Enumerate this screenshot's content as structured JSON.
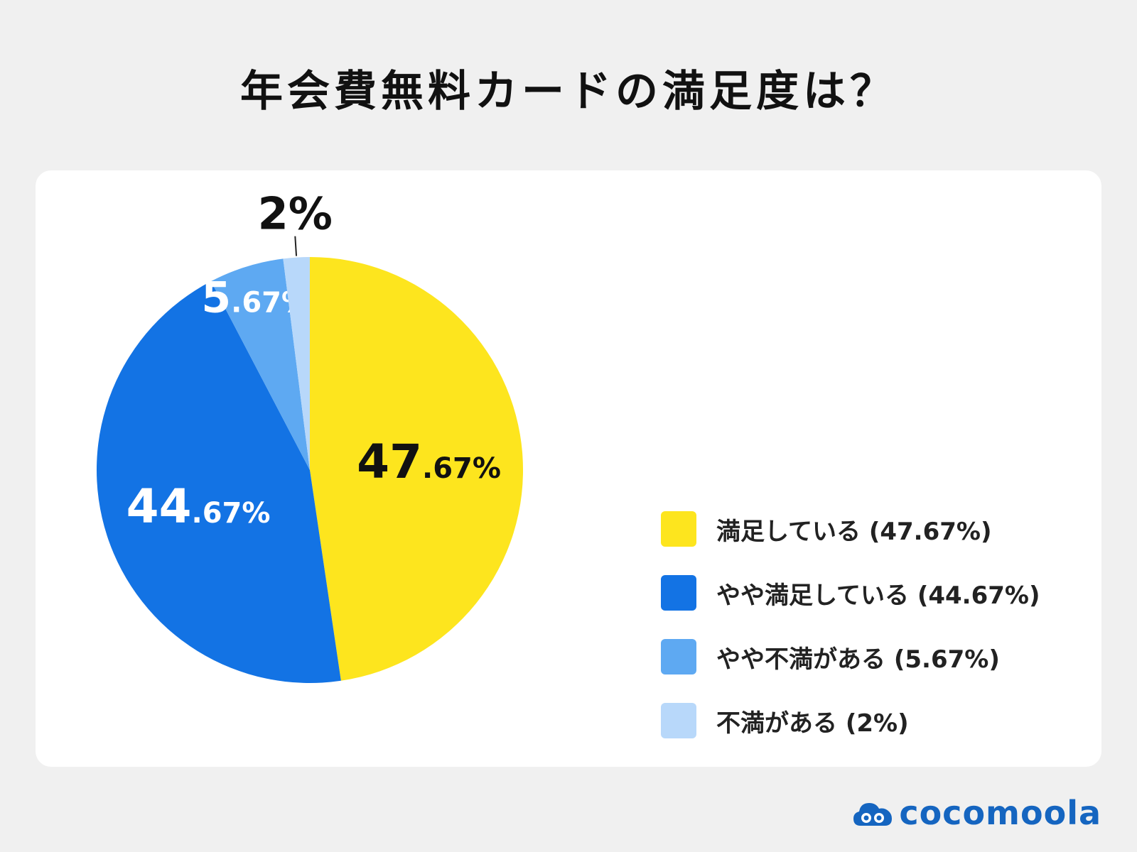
{
  "title": "年会費無料カードの満足度は？",
  "chart_data": {
    "type": "pie",
    "slices": [
      {
        "name": "満足している",
        "value": 47.67,
        "color": "#fde51e",
        "label_int": "47",
        "label_dec": ".67%",
        "label_color": "#111111"
      },
      {
        "name": "やや満足している",
        "value": 44.67,
        "color": "#1373e4",
        "label_int": "44",
        "label_dec": ".67%",
        "label_color": "#ffffff"
      },
      {
        "name": "やや不満がある",
        "value": 5.67,
        "color": "#5ea9f2",
        "label_int": "5",
        "label_dec": ".67%",
        "label_color": "#ffffff"
      },
      {
        "name": "不満がある",
        "value": 2,
        "color": "#b8d8fa",
        "label_int": "2",
        "label_dec": "%",
        "label_color": "#111111"
      }
    ],
    "legend": [
      "満足している (47.67%)",
      "やや満足している (44.67%)",
      "やや不満がある (5.67%)",
      "不満がある (2%)"
    ],
    "legend_position": "right",
    "start_angle": "top",
    "direction": "clockwise"
  },
  "logo": {
    "text": "cocomoola",
    "icon": "cloud-logo-icon"
  }
}
